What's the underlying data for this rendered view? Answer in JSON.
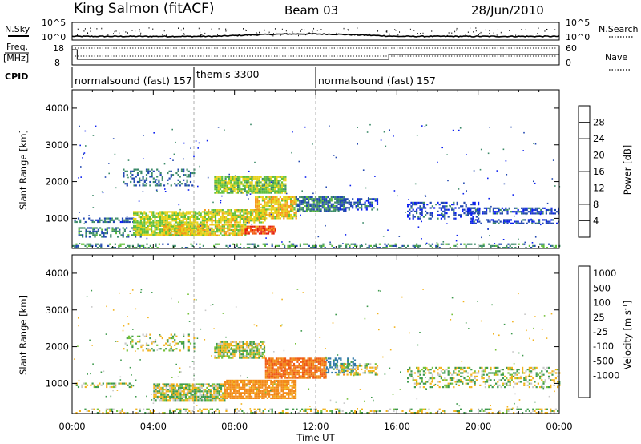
{
  "header": {
    "station": "King Salmon (fitACF)",
    "beam": "Beam 03",
    "date": "28/Jun/2010"
  },
  "top_panel": {
    "nsky_label": "N.Sky",
    "nsearch_label": "N.Search",
    "freq_label": "Freq.",
    "freq_unit": "[MHz]",
    "nave_label": "Nave",
    "cpid_label": "CPID",
    "noise_ticks_left": [
      "10^5",
      "10^0"
    ],
    "noise_ticks_right": [
      "10^5",
      "10^0"
    ],
    "freq_ticks_left": [
      "18",
      "8"
    ],
    "nave_ticks_right": [
      "60",
      "0"
    ]
  },
  "cpid_segments": [
    {
      "label": "normalsound (fast) 157",
      "start_hour": 0,
      "end_hour": 6
    },
    {
      "label": "themis 3300",
      "start_hour": 6,
      "end_hour": 12
    },
    {
      "label": "normalsound (fast) 157",
      "start_hour": 12,
      "end_hour": 24
    }
  ],
  "x_axis": {
    "label": "Time UT",
    "ticks": [
      "00:00",
      "04:00",
      "08:00",
      "12:00",
      "16:00",
      "20:00",
      "00:00"
    ],
    "range_hours": [
      0,
      24
    ]
  },
  "y_axis": {
    "label": "Slant Range [km]",
    "ticks": [
      "1000",
      "2000",
      "3000",
      "4000"
    ],
    "range_km": [
      180,
      4500
    ]
  },
  "power_colorbar": {
    "label": "Power [dB]",
    "ticks": [
      "4",
      "8",
      "12",
      "16",
      "20",
      "24",
      "28"
    ],
    "colors": [
      "#0a1ff0",
      "#2147b0",
      "#3b8a68",
      "#5fbf3a",
      "#e7d21a",
      "#f59818",
      "#f25a12",
      "#e41b0d"
    ]
  },
  "velocity_colorbar": {
    "label": "Velocity [m s",
    "label_sup": "-1",
    "label_end": "]",
    "ticks": [
      "1000",
      "500",
      "100",
      "25",
      "-25",
      "-100",
      "-500",
      "-1000"
    ],
    "colors": [
      "#1d3ab8",
      "#2f78a8",
      "#3e9a4c",
      "#76c23a",
      "#c8c8c8",
      "#f2b21b",
      "#f28a1a",
      "#ef5b16",
      "#e01a10"
    ]
  },
  "chart_data": {
    "type": "heatmap",
    "title": "King Salmon (fitACF)  Beam 03  28/Jun/2010",
    "xlabel": "Time UT",
    "ylabel": "Slant Range [km]",
    "xlim_hours": [
      0,
      24
    ],
    "ylim_km": [
      180,
      4500
    ],
    "panels": [
      {
        "name": "Power",
        "units": "dB",
        "scale": [
          0,
          32
        ],
        "regions": [
          {
            "t": [
              0.1,
              3.0
            ],
            "r": [
              880,
              1020
            ],
            "v": 7,
            "d": 0.55
          },
          {
            "t": [
              0.3,
              3.5
            ],
            "r": [
              480,
              760
            ],
            "v": 9,
            "d": 0.45
          },
          {
            "t": [
              2.5,
              6.0
            ],
            "r": [
              1900,
              2350
            ],
            "v": 8,
            "d": 0.3
          },
          {
            "t": [
              3.0,
              6.5
            ],
            "r": [
              550,
              1200
            ],
            "v": 16,
            "d": 0.8
          },
          {
            "t": [
              4.5,
              8.5
            ],
            "r": [
              550,
              850
            ],
            "v": 18,
            "d": 0.85
          },
          {
            "t": [
              6.5,
              9.5
            ],
            "r": [
              900,
              1250
            ],
            "v": 17,
            "d": 0.85
          },
          {
            "t": [
              7.0,
              10.5
            ],
            "r": [
              1700,
              2150
            ],
            "v": 15,
            "d": 0.85
          },
          {
            "t": [
              8.5,
              10.0
            ],
            "r": [
              600,
              800
            ],
            "v": 27,
            "d": 0.9
          },
          {
            "t": [
              9.0,
              11.0
            ],
            "r": [
              1000,
              1600
            ],
            "v": 19,
            "d": 0.85
          },
          {
            "t": [
              11.0,
              13.5
            ],
            "r": [
              1200,
              1600
            ],
            "v": 9,
            "d": 0.75
          },
          {
            "t": [
              13.0,
              15.0
            ],
            "r": [
              1250,
              1550
            ],
            "v": 6,
            "d": 0.55
          },
          {
            "t": [
              16.5,
              20.0
            ],
            "r": [
              1000,
              1450
            ],
            "v": 5,
            "d": 0.35
          },
          {
            "t": [
              19.5,
              24.0
            ],
            "r": [
              1150,
              1300
            ],
            "v": 6,
            "d": 0.6
          },
          {
            "t": [
              19.5,
              24.0
            ],
            "r": [
              880,
              980
            ],
            "v": 5,
            "d": 0.5
          },
          {
            "t": [
              0.0,
              24.0
            ],
            "r": [
              200,
              320
            ],
            "v": 10,
            "d": 0.35
          }
        ]
      },
      {
        "name": "Velocity",
        "units": "m s^-1",
        "scale": [
          -1000,
          1000
        ],
        "regions": [
          {
            "t": [
              0.1,
              3.0
            ],
            "r": [
              880,
              1020
            ],
            "v": 0,
            "d": 0.45
          },
          {
            "t": [
              2.5,
              6.0
            ],
            "r": [
              1900,
              2350
            ],
            "v": 0,
            "d": 0.25
          },
          {
            "t": [
              4.0,
              7.5
            ],
            "r": [
              550,
              1000
            ],
            "v": 0,
            "d": 0.85
          },
          {
            "t": [
              7.0,
              9.5
            ],
            "r": [
              1700,
              2150
            ],
            "v": -10,
            "d": 0.8
          },
          {
            "t": [
              7.5,
              11.0
            ],
            "r": [
              600,
              1100
            ],
            "v": -150,
            "d": 0.85
          },
          {
            "t": [
              9.5,
              12.5
            ],
            "r": [
              1150,
              1700
            ],
            "v": -500,
            "d": 0.9
          },
          {
            "t": [
              12.5,
              14.0
            ],
            "r": [
              1300,
              1700
            ],
            "v": 150,
            "d": 0.5
          },
          {
            "t": [
              13.0,
              15.0
            ],
            "r": [
              1250,
              1550
            ],
            "v": -30,
            "d": 0.45
          },
          {
            "t": [
              16.5,
              24.0
            ],
            "r": [
              900,
              1450
            ],
            "v": 0,
            "d": 0.35
          },
          {
            "t": [
              0.0,
              24.0
            ],
            "r": [
              200,
              320
            ],
            "v": 0,
            "d": 0.35
          }
        ]
      }
    ]
  }
}
